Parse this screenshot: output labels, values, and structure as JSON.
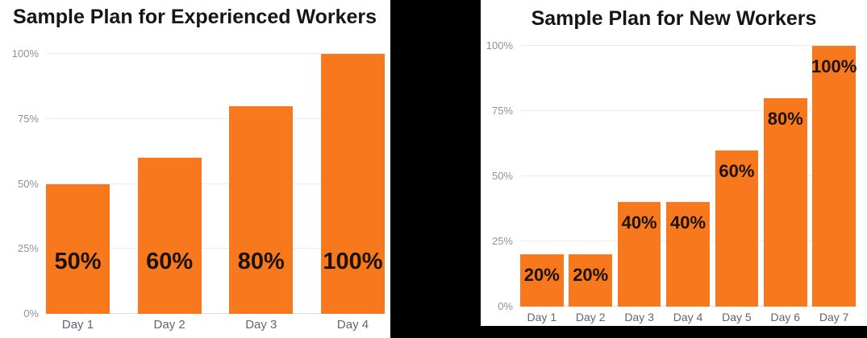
{
  "page": {
    "background_color": "#ffffff",
    "divider_color": "#000000",
    "accent_color": "#F8781E"
  },
  "chart_data": [
    {
      "type": "bar",
      "title": "Sample Plan for Experienced Workers",
      "categories": [
        "Day 1",
        "Day 2",
        "Day 3",
        "Day 4"
      ],
      "values": [
        50,
        60,
        80,
        100
      ],
      "data_labels": [
        "50%",
        "60%",
        "80%",
        "100%"
      ],
      "yticks": [
        "0%",
        "25%",
        "50%",
        "75%",
        "100%"
      ],
      "ylim": [
        0,
        100
      ],
      "xlabel": "",
      "ylabel": "",
      "grid": true,
      "legend": false,
      "bar_color": "#F8781E",
      "value_label_color": "#1a140c",
      "tick_label_color": "#8f90a0",
      "axis_label_color": "#5e6575",
      "label_placement": "fixed-low-inside"
    },
    {
      "type": "bar",
      "title": "Sample Plan for New Workers",
      "categories": [
        "Day 1",
        "Day 2",
        "Day 3",
        "Day 4",
        "Day 5",
        "Day 6",
        "Day 7"
      ],
      "values": [
        20,
        20,
        40,
        40,
        60,
        80,
        100
      ],
      "data_labels": [
        "20%",
        "20%",
        "40%",
        "40%",
        "60%",
        "80%",
        "100%"
      ],
      "yticks": [
        "0%",
        "25%",
        "50%",
        "75%",
        "100%"
      ],
      "ylim": [
        0,
        100
      ],
      "xlabel": "",
      "ylabel": "",
      "grid": true,
      "legend": false,
      "bar_color": "#F8781E",
      "value_label_color": "#1a140c",
      "tick_label_color": "#8f90a0",
      "axis_label_color": "#5e6575",
      "label_placement": "near-top-inside"
    }
  ]
}
